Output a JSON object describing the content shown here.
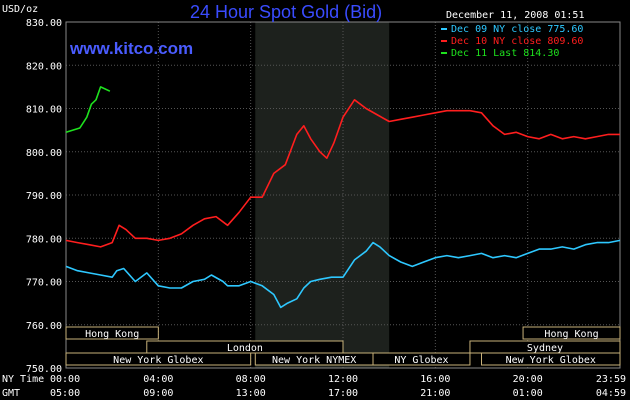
{
  "title": "24 Hour Spot Gold (Bid)",
  "website": "www.kitco.com",
  "timestamp": "December 11, 2008 01:51",
  "chart_data": {
    "type": "line",
    "ylabel": "USD/oz",
    "ylim": [
      750,
      830
    ],
    "yticks": [
      "830.00",
      "820.00",
      "810.00",
      "800.00",
      "790.00",
      "780.00",
      "770.00",
      "760.00",
      "750.00"
    ],
    "ytick_values": [
      830,
      820,
      810,
      800,
      790,
      780,
      770,
      760,
      750
    ],
    "x_unit": "hour",
    "xlim": [
      0,
      24
    ],
    "grid": true,
    "legend_position": "top-right",
    "x_axes": [
      {
        "label": "NY Time",
        "ticks": [
          "00:00",
          "04:00",
          "08:00",
          "12:00",
          "16:00",
          "20:00",
          "23:59"
        ]
      },
      {
        "label": "GMT",
        "ticks": [
          "05:00",
          "09:00",
          "13:00",
          "17:00",
          "21:00",
          "01:00",
          "04:59"
        ]
      }
    ],
    "tick_hours": [
      0,
      4,
      8,
      12,
      16,
      20,
      24
    ],
    "highlight_range": [
      8.2,
      14
    ],
    "series": [
      {
        "name": "Dec 09 NY close 775.60",
        "color": "#2ec8ff",
        "points": [
          [
            0,
            773.5
          ],
          [
            0.5,
            772.5
          ],
          [
            1,
            772
          ],
          [
            1.5,
            771.5
          ],
          [
            2,
            771
          ],
          [
            2.2,
            772.5
          ],
          [
            2.5,
            773
          ],
          [
            3,
            770
          ],
          [
            3.5,
            772
          ],
          [
            4,
            769
          ],
          [
            4.5,
            768.5
          ],
          [
            5,
            768.5
          ],
          [
            5.5,
            770
          ],
          [
            6,
            770.5
          ],
          [
            6.3,
            771.5
          ],
          [
            6.8,
            770
          ],
          [
            7,
            769
          ],
          [
            7.5,
            769
          ],
          [
            8,
            770
          ],
          [
            8.5,
            769
          ],
          [
            9,
            767
          ],
          [
            9.3,
            764
          ],
          [
            9.6,
            765
          ],
          [
            10,
            766
          ],
          [
            10.3,
            768.5
          ],
          [
            10.6,
            770
          ],
          [
            11,
            770.5
          ],
          [
            11.5,
            771
          ],
          [
            12,
            771
          ],
          [
            12.5,
            775
          ],
          [
            13,
            777
          ],
          [
            13.3,
            779
          ],
          [
            13.6,
            778
          ],
          [
            14,
            776
          ],
          [
            14.5,
            774.5
          ],
          [
            15,
            773.5
          ],
          [
            15.5,
            774.5
          ],
          [
            16,
            775.5
          ],
          [
            16.5,
            776
          ],
          [
            17,
            775.5
          ],
          [
            17.5,
            776
          ],
          [
            18,
            776.5
          ],
          [
            18.5,
            775.5
          ],
          [
            19,
            776
          ],
          [
            19.5,
            775.5
          ],
          [
            20,
            776.5
          ],
          [
            20.5,
            777.5
          ],
          [
            21,
            777.5
          ],
          [
            21.5,
            778
          ],
          [
            22,
            777.5
          ],
          [
            22.5,
            778.5
          ],
          [
            23,
            779
          ],
          [
            23.5,
            779
          ],
          [
            24,
            779.5
          ]
        ]
      },
      {
        "name": "Dec 10 NY close 809.60",
        "color": "#ff1e1e",
        "points": [
          [
            0,
            779.5
          ],
          [
            0.5,
            779
          ],
          [
            1,
            778.5
          ],
          [
            1.5,
            778
          ],
          [
            2,
            779
          ],
          [
            2.3,
            783
          ],
          [
            2.6,
            782
          ],
          [
            3,
            780
          ],
          [
            3.5,
            780
          ],
          [
            4,
            779.5
          ],
          [
            4.5,
            780
          ],
          [
            5,
            781
          ],
          [
            5.5,
            783
          ],
          [
            6,
            784.5
          ],
          [
            6.5,
            785
          ],
          [
            7,
            783
          ],
          [
            7.5,
            786
          ],
          [
            8,
            789.5
          ],
          [
            8.5,
            789.5
          ],
          [
            9,
            795
          ],
          [
            9.5,
            797
          ],
          [
            10,
            804
          ],
          [
            10.3,
            806
          ],
          [
            10.6,
            803
          ],
          [
            11,
            800
          ],
          [
            11.3,
            798.5
          ],
          [
            11.6,
            802
          ],
          [
            12,
            808
          ],
          [
            12.5,
            812
          ],
          [
            13,
            810
          ],
          [
            13.5,
            808.5
          ],
          [
            14,
            807
          ],
          [
            14.5,
            807.5
          ],
          [
            15,
            808
          ],
          [
            15.5,
            808.5
          ],
          [
            16,
            809
          ],
          [
            16.5,
            809.5
          ],
          [
            17,
            809.5
          ],
          [
            17.5,
            809.5
          ],
          [
            18,
            809
          ],
          [
            18.5,
            806
          ],
          [
            19,
            804
          ],
          [
            19.5,
            804.5
          ],
          [
            20,
            803.5
          ],
          [
            20.5,
            803
          ],
          [
            21,
            804
          ],
          [
            21.5,
            803
          ],
          [
            22,
            803.5
          ],
          [
            22.5,
            803
          ],
          [
            23,
            803.5
          ],
          [
            23.5,
            804
          ],
          [
            24,
            804
          ]
        ]
      },
      {
        "name": "Dec 11 Last 814.30",
        "color": "#1ee21e",
        "points": [
          [
            0,
            804.5
          ],
          [
            0.3,
            805
          ],
          [
            0.6,
            805.5
          ],
          [
            0.9,
            808
          ],
          [
            1.1,
            811
          ],
          [
            1.3,
            812
          ],
          [
            1.5,
            815
          ],
          [
            1.7,
            814.5
          ],
          [
            1.9,
            814
          ]
        ]
      }
    ],
    "sessions": [
      {
        "label": "Hong Kong",
        "start": 0,
        "end": 4
      },
      {
        "label": "London",
        "start": 3.5,
        "end": 12
      },
      {
        "label": "New York Globex",
        "start": 0,
        "end": 8
      },
      {
        "label": "New York NYMEX",
        "start": 8.2,
        "end": 13.3
      },
      {
        "label": "NY Globex",
        "start": 13.3,
        "end": 17.5
      },
      {
        "label": "Sydney",
        "start": 17.5,
        "end": 24
      },
      {
        "label": "Hong Kong",
        "start": 19.8,
        "end": 24
      },
      {
        "label": "New York Globex",
        "start": 18,
        "end": 24
      }
    ]
  }
}
